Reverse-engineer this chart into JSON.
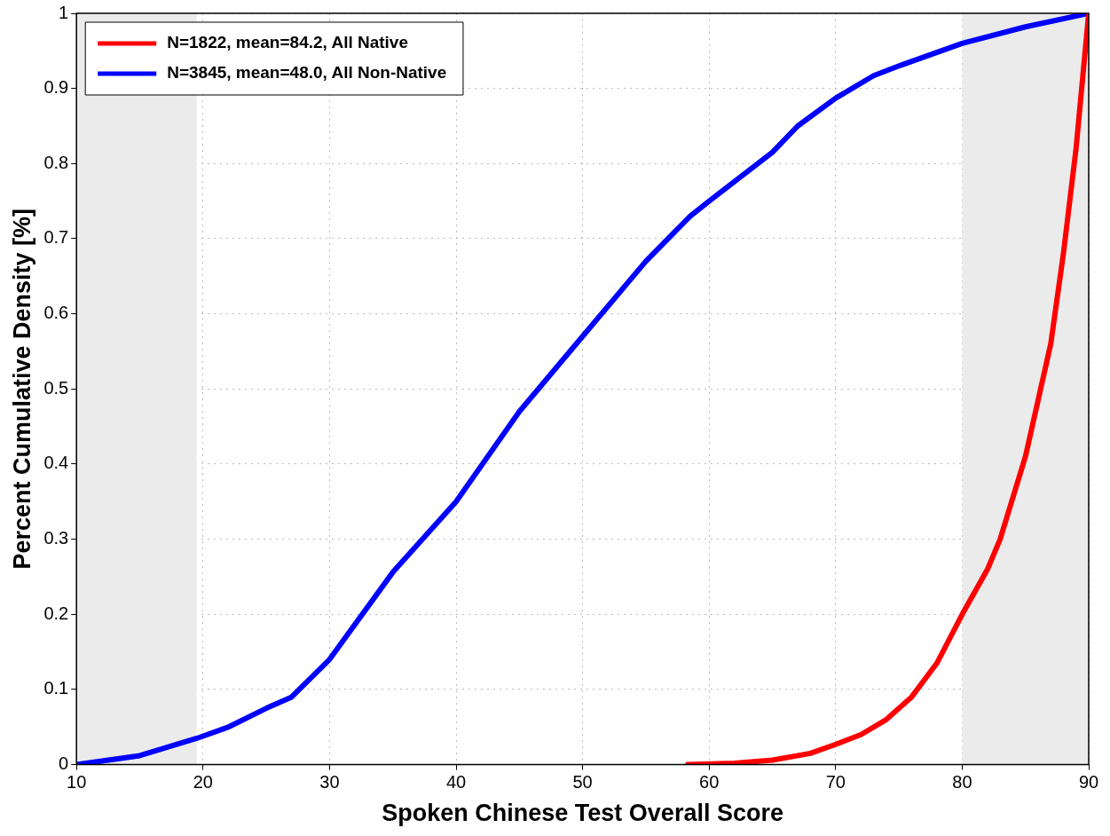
{
  "chart_data": {
    "type": "line",
    "xlabel": "Spoken Chinese Test Overall Score",
    "ylabel": "Percent Cumulative Density [%]",
    "xlim": [
      10,
      90
    ],
    "xticks": [
      10,
      20,
      30,
      40,
      50,
      60,
      70,
      80,
      90
    ],
    "ylim": [
      0,
      1
    ],
    "yticks": [
      0,
      0.1,
      0.2,
      0.3,
      0.4,
      0.5,
      0.6,
      0.7,
      0.8,
      0.9,
      1
    ],
    "grid": true,
    "legend": "top left",
    "marker": "none",
    "line_style": "solid",
    "bands": [
      {
        "axis": "x",
        "from": 10,
        "to": 19.5,
        "color": "#ebebeb"
      },
      {
        "axis": "x",
        "from": 80,
        "to": 90,
        "color": "#ebebeb"
      }
    ],
    "series": [
      {
        "name": "N=1822, mean=84.2, All Native",
        "color": "#ff0000",
        "x": [
          58.3,
          62,
          65,
          68,
          70,
          72,
          74,
          76,
          78,
          80,
          82,
          83,
          85,
          87,
          88,
          89,
          90
        ],
        "values": [
          0,
          0.002,
          0.006,
          0.015,
          0.027,
          0.04,
          0.06,
          0.09,
          0.135,
          0.2,
          0.26,
          0.3,
          0.41,
          0.56,
          0.68,
          0.82,
          1
        ]
      },
      {
        "name": "N=3845, mean=48.0, All Non-Native",
        "color": "#0000ff",
        "x": [
          10,
          15,
          19.5,
          22,
          25,
          27,
          30,
          35,
          40,
          45,
          50,
          55,
          58.5,
          60,
          65,
          67,
          70,
          73,
          75,
          80,
          85,
          90
        ],
        "values": [
          0,
          0.012,
          0.035,
          0.05,
          0.075,
          0.09,
          0.14,
          0.256,
          0.35,
          0.47,
          0.57,
          0.67,
          0.73,
          0.75,
          0.815,
          0.85,
          0.887,
          0.917,
          0.93,
          0.96,
          0.982,
          1
        ]
      }
    ]
  }
}
